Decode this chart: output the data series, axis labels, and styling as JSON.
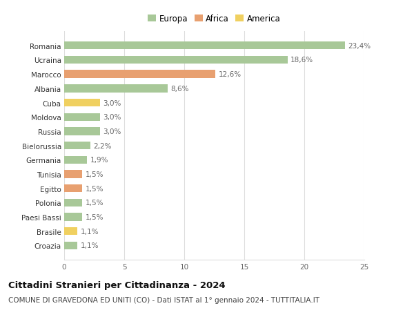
{
  "countries": [
    "Romania",
    "Ucraina",
    "Marocco",
    "Albania",
    "Cuba",
    "Moldova",
    "Russia",
    "Bielorussia",
    "Germania",
    "Tunisia",
    "Egitto",
    "Polonia",
    "Paesi Bassi",
    "Brasile",
    "Croazia"
  ],
  "values": [
    23.4,
    18.6,
    12.6,
    8.6,
    3.0,
    3.0,
    3.0,
    2.2,
    1.9,
    1.5,
    1.5,
    1.5,
    1.5,
    1.1,
    1.1
  ],
  "labels": [
    "23,4%",
    "18,6%",
    "12,6%",
    "8,6%",
    "3,0%",
    "3,0%",
    "3,0%",
    "2,2%",
    "1,9%",
    "1,5%",
    "1,5%",
    "1,5%",
    "1,5%",
    "1,1%",
    "1,1%"
  ],
  "continents": [
    "Europa",
    "Europa",
    "Africa",
    "Europa",
    "America",
    "Europa",
    "Europa",
    "Europa",
    "Europa",
    "Africa",
    "Africa",
    "Europa",
    "Europa",
    "America",
    "Europa"
  ],
  "colors": {
    "Europa": "#a8c898",
    "Africa": "#e8a070",
    "America": "#f0d060"
  },
  "xlim": [
    0,
    25
  ],
  "xticks": [
    0,
    5,
    10,
    15,
    20,
    25
  ],
  "title": "Cittadini Stranieri per Cittadinanza - 2024",
  "subtitle": "COMUNE DI GRAVEDONA ED UNITI (CO) - Dati ISTAT al 1° gennaio 2024 - TUTTITALIA.IT",
  "background_color": "#ffffff",
  "grid_color": "#dddddd",
  "bar_height": 0.55,
  "label_fontsize": 7.5,
  "tick_fontsize": 7.5,
  "title_fontsize": 9.5,
  "subtitle_fontsize": 7.5,
  "legend_fontsize": 8.5
}
